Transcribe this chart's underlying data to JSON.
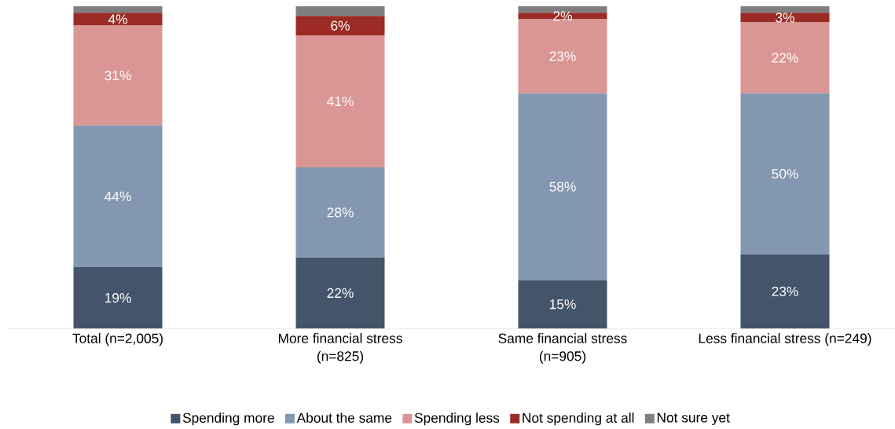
{
  "chart_data": {
    "type": "bar",
    "stacked": true,
    "legend": "bottom",
    "categories": [
      "Total (n=2,005)",
      "More financial stress (n=825)",
      "Same financial stress (n=905)",
      "Less financial stress (n=249)"
    ],
    "series": [
      {
        "name": "Spending more",
        "color": "#44546a",
        "values": [
          19,
          22,
          15,
          23
        ],
        "value_labels": [
          "19%",
          "22%",
          "15%",
          "23%"
        ]
      },
      {
        "name": "About the same",
        "color": "#8497b0",
        "values": [
          44,
          28,
          58,
          50
        ],
        "value_labels": [
          "44%",
          "28%",
          "58%",
          "50%"
        ]
      },
      {
        "name": "Spending less",
        "color": "#da9694",
        "values": [
          31,
          41,
          23,
          22
        ],
        "value_labels": [
          "31%",
          "41%",
          "23%",
          "22%"
        ]
      },
      {
        "name": "Not spending at all",
        "color": "#9b2b24",
        "values": [
          4,
          6,
          2,
          3
        ],
        "value_labels": [
          "4%",
          "6%",
          "2%",
          "3%"
        ]
      },
      {
        "name": "Not sure yet",
        "color": "#7f7f7f",
        "values": [
          2,
          3,
          2,
          2
        ],
        "value_labels": [
          null,
          null,
          null,
          null
        ]
      }
    ]
  }
}
